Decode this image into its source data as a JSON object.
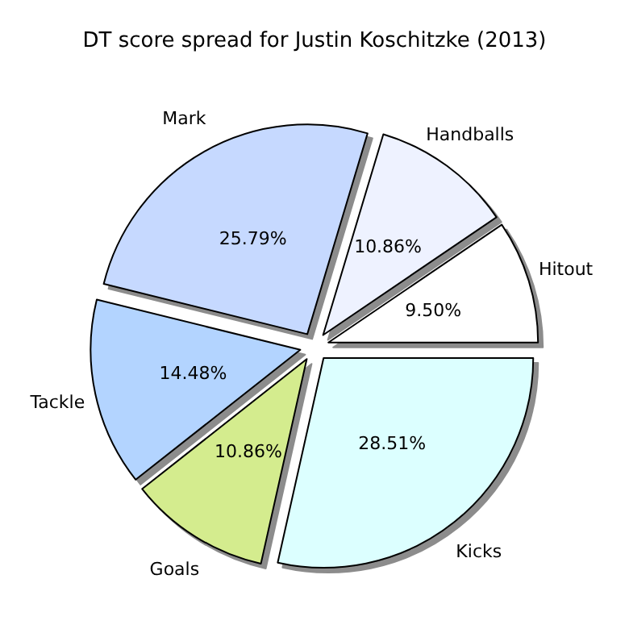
{
  "chart_data": {
    "type": "pie",
    "title": "DT score spread for Justin Koschitzke (2013)",
    "categories": [
      "Hitout",
      "Handballs",
      "Mark",
      "Tackle",
      "Goals",
      "Kicks"
    ],
    "values": [
      9.5,
      10.86,
      25.79,
      14.48,
      10.86,
      28.51
    ],
    "value_labels": [
      "9.50%",
      "10.86%",
      "25.79%",
      "14.48%",
      "10.86%",
      "28.51%"
    ],
    "colors": [
      "#ffffff",
      "#eef2ff",
      "#c6d9ff",
      "#b3d4ff",
      "#d4ec8e",
      "#dcffff"
    ],
    "legend": false
  }
}
